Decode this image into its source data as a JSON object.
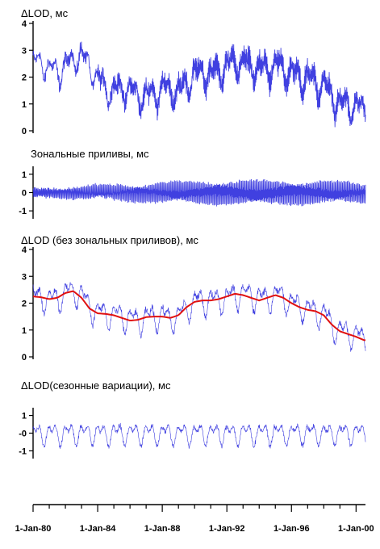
{
  "chart_data": [
    {
      "type": "line",
      "title": "ΔLOD, мс",
      "ylim": [
        0,
        4
      ],
      "yticks": [
        0,
        1,
        2,
        3,
        4
      ],
      "xlim": [
        "1980-01-01",
        "2000-08-01"
      ],
      "series": [
        {
          "color": "#2b2bdd",
          "x": [
            "1980-01-01",
            "1980-07-01",
            "1981-01-01",
            "1981-07-01",
            "1982-01-01",
            "1982-07-01",
            "1983-01-01",
            "1983-07-01",
            "1984-01-01",
            "1984-07-01",
            "1985-01-01",
            "1985-07-01",
            "1986-01-01",
            "1986-07-01",
            "1987-01-01",
            "1987-07-01",
            "1988-01-01",
            "1988-07-01",
            "1989-01-01",
            "1989-07-01",
            "1990-01-01",
            "1990-07-01",
            "1991-01-01",
            "1991-07-01",
            "1992-01-01",
            "1992-07-01",
            "1993-01-01",
            "1993-07-01",
            "1994-01-01",
            "1994-07-01",
            "1995-01-01",
            "1995-07-01",
            "1996-01-01",
            "1996-07-01",
            "1997-01-01",
            "1997-07-01",
            "1998-01-01",
            "1998-07-01",
            "1999-01-01",
            "1999-07-01",
            "2000-01-01",
            "2000-07-01"
          ],
          "y": [
            2.5,
            2.6,
            2.3,
            2.2,
            2.4,
            2.7,
            2.8,
            2.4,
            1.9,
            1.6,
            1.5,
            1.6,
            1.5,
            1.3,
            1.3,
            1.4,
            1.6,
            1.5,
            1.4,
            1.8,
            2.1,
            2.2,
            2.1,
            2.2,
            2.4,
            2.6,
            2.5,
            2.4,
            2.3,
            2.3,
            2.4,
            2.3,
            2.1,
            2.0,
            1.9,
            1.8,
            1.7,
            1.3,
            1.0,
            1.0,
            0.9,
            0.8
          ]
        }
      ]
    },
    {
      "type": "line",
      "title": "Зональные приливы, мс",
      "ylim": [
        -1.3,
        1.3
      ],
      "yticks": [
        -1,
        0,
        1
      ],
      "xlim": [
        "1980-01-01",
        "2000-08-01"
      ],
      "series": [
        {
          "color": "#2b2bdd",
          "amplitude_ms": 0.75,
          "x": [
            "1980-01-01",
            "2000-08-01"
          ],
          "y": [
            0,
            0
          ]
        }
      ]
    },
    {
      "type": "line",
      "title": "ΔLOD (без зональных приливов), мс",
      "ylim": [
        0,
        4
      ],
      "yticks": [
        0,
        1,
        2,
        3,
        4
      ],
      "xlim": [
        "1980-01-01",
        "2000-08-01"
      ],
      "series": [
        {
          "color": "#2b2bdd",
          "x": [
            "1980-01-01",
            "1980-07-01",
            "1981-01-01",
            "1981-07-01",
            "1982-01-01",
            "1982-07-01",
            "1983-01-01",
            "1983-07-01",
            "1984-01-01",
            "1984-07-01",
            "1985-01-01",
            "1985-07-01",
            "1986-01-01",
            "1986-07-01",
            "1987-01-01",
            "1987-07-01",
            "1988-01-01",
            "1988-07-01",
            "1989-01-01",
            "1989-07-01",
            "1990-01-01",
            "1990-07-01",
            "1991-01-01",
            "1991-07-01",
            "1992-01-01",
            "1992-07-01",
            "1993-01-01",
            "1993-07-01",
            "1994-01-01",
            "1994-07-01",
            "1995-01-01",
            "1995-07-01",
            "1996-01-01",
            "1996-07-01",
            "1997-01-01",
            "1997-07-01",
            "1998-01-01",
            "1998-07-01",
            "1999-01-01",
            "1999-07-01",
            "2000-01-01",
            "2000-07-01"
          ],
          "y": [
            2.25,
            2.2,
            2.15,
            2.2,
            2.35,
            2.45,
            2.3,
            1.9,
            1.65,
            1.6,
            1.55,
            1.5,
            1.4,
            1.35,
            1.45,
            1.5,
            1.55,
            1.4,
            1.5,
            1.8,
            2.05,
            2.1,
            2.1,
            2.15,
            2.2,
            2.3,
            2.35,
            2.3,
            2.2,
            2.15,
            2.3,
            2.25,
            2.0,
            1.9,
            1.75,
            1.7,
            1.6,
            1.2,
            0.95,
            0.9,
            0.8,
            0.65
          ]
        },
        {
          "color": "#e01010",
          "x": [
            "1980-01-01",
            "1980-07-01",
            "1981-01-01",
            "1981-07-01",
            "1982-01-01",
            "1982-07-01",
            "1983-01-01",
            "1983-07-01",
            "1984-01-01",
            "1984-07-01",
            "1985-01-01",
            "1985-07-01",
            "1986-01-01",
            "1986-07-01",
            "1987-01-01",
            "1987-07-01",
            "1988-01-01",
            "1988-07-01",
            "1989-01-01",
            "1989-07-01",
            "1990-01-01",
            "1990-07-01",
            "1991-01-01",
            "1991-07-01",
            "1992-01-01",
            "1992-07-01",
            "1993-01-01",
            "1993-07-01",
            "1994-01-01",
            "1994-07-01",
            "1995-01-01",
            "1995-07-01",
            "1996-01-01",
            "1996-07-01",
            "1997-01-01",
            "1997-07-01",
            "1998-01-01",
            "1998-07-01",
            "1999-01-01",
            "1999-07-01",
            "2000-01-01",
            "2000-07-01"
          ],
          "y": [
            2.25,
            2.22,
            2.15,
            2.2,
            2.38,
            2.45,
            2.2,
            1.8,
            1.62,
            1.6,
            1.55,
            1.45,
            1.35,
            1.38,
            1.48,
            1.5,
            1.5,
            1.45,
            1.55,
            1.85,
            2.05,
            2.1,
            2.1,
            2.15,
            2.25,
            2.35,
            2.3,
            2.2,
            2.1,
            2.2,
            2.3,
            2.2,
            2.0,
            1.85,
            1.75,
            1.7,
            1.55,
            1.2,
            0.95,
            0.85,
            0.75,
            0.62
          ]
        }
      ]
    },
    {
      "type": "line",
      "title": "ΔLOD(сезонные вариации), мс",
      "ylim": [
        -1.3,
        1.3
      ],
      "yticks": [
        -1,
        0,
        1
      ],
      "ytick_labels": [
        "-1",
        "-0",
        "1"
      ],
      "xlim": [
        "1980-01-01",
        "2000-08-01"
      ],
      "series": [
        {
          "color": "#2b2bdd",
          "amplitude_ms": 0.7,
          "x": [
            "1980-01-01",
            "2000-08-01"
          ],
          "y": [
            0,
            0
          ]
        }
      ]
    }
  ],
  "x_axis": {
    "tick_labels": [
      "1-Jan-80",
      "1-Jan-84",
      "1-Jan-88",
      "1-Jan-92",
      "1-Jan-96",
      "1-Jan-00"
    ],
    "tick_dates": [
      "1980-01-01",
      "1984-01-01",
      "1988-01-01",
      "1992-01-01",
      "1996-01-01",
      "2000-01-01"
    ]
  }
}
